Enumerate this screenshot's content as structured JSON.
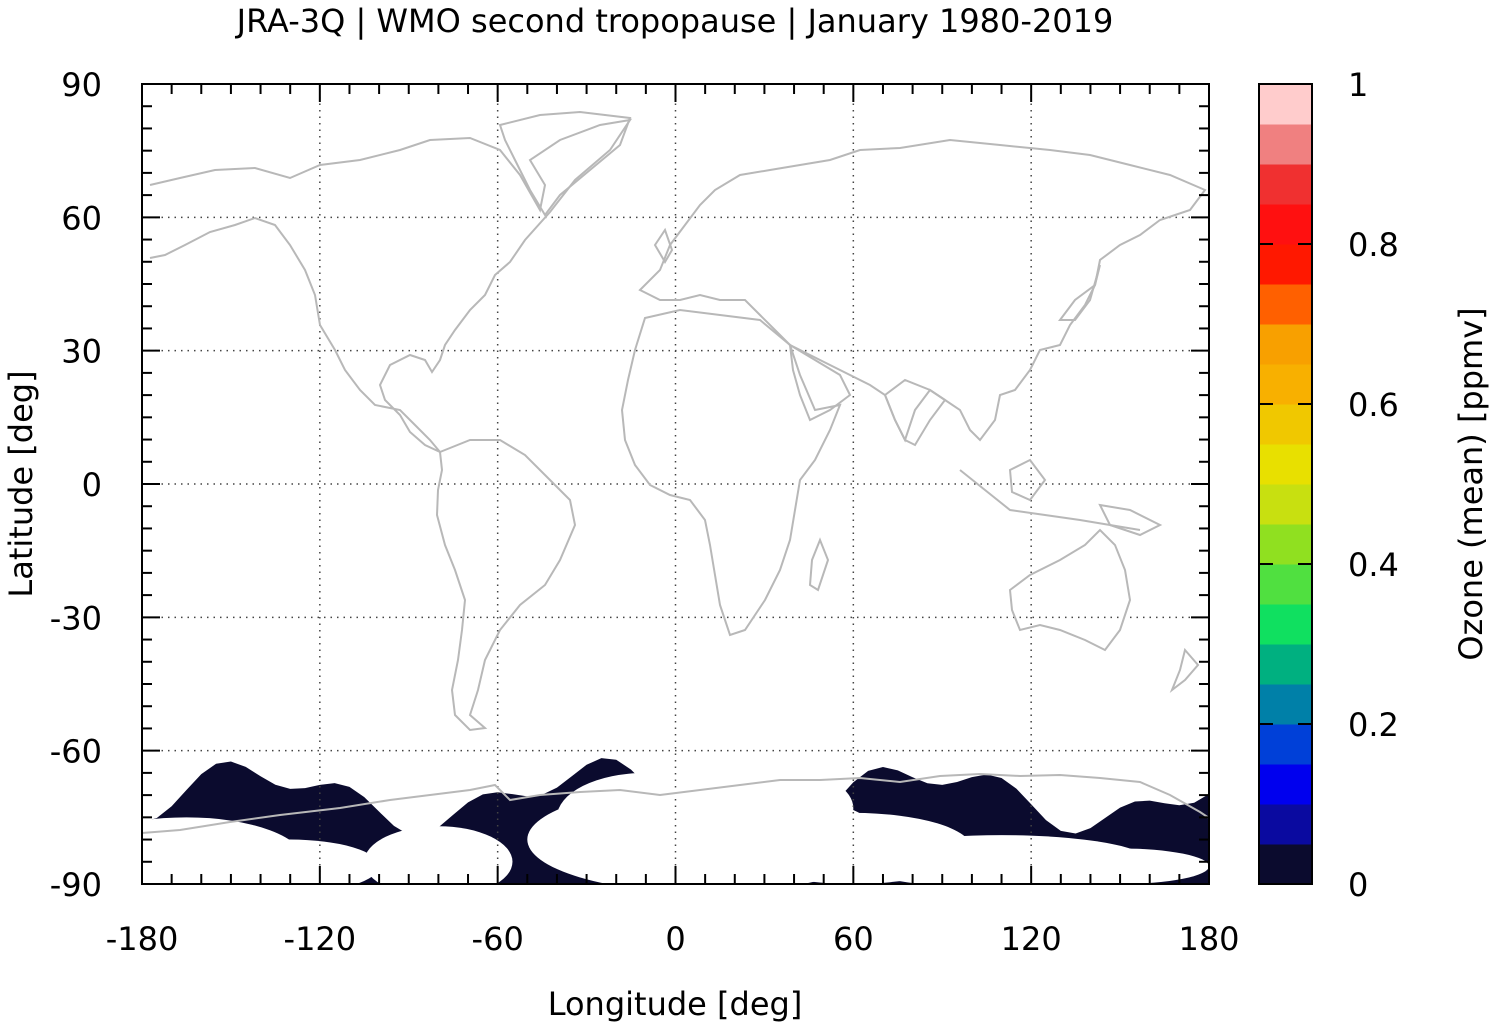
{
  "chart_data": {
    "type": "heatmap",
    "title": "JRA-3Q | WMO second tropopause | January 1980-2019",
    "xlabel": "Longitude [deg]",
    "ylabel": "Latitude [deg]",
    "xlim": [
      -180,
      180
    ],
    "ylim": [
      -90,
      90
    ],
    "x_ticks": [
      -180,
      -120,
      -60,
      0,
      60,
      120,
      180
    ],
    "x_tick_labels": [
      "-180",
      "-120",
      "-60",
      "0",
      "60",
      "120",
      "180"
    ],
    "y_ticks": [
      90,
      60,
      30,
      0,
      -30,
      -60,
      -90
    ],
    "y_tick_labels": [
      "90",
      "60",
      "30",
      "0",
      "-30",
      "-60",
      "-90"
    ],
    "grid": true,
    "coastlines": true,
    "colorbar": {
      "label": "Ozone (mean) [ppmv]",
      "min": 0,
      "max": 1,
      "ticks": [
        0,
        0.2,
        0.4,
        0.6,
        0.8,
        1
      ],
      "tick_labels": [
        "0",
        "0.2",
        "0.4",
        "0.6",
        "0.8",
        "1"
      ],
      "colors": [
        "#0b0b2e",
        "#0a0aa0",
        "#0000ee",
        "#0040d8",
        "#0080a8",
        "#00b080",
        "#10e060",
        "#50e040",
        "#90e020",
        "#c8e010",
        "#e8e000",
        "#f0c800",
        "#f8b000",
        "#f8a000",
        "#ff6000",
        "#ff1800",
        "#ff1010",
        "#f03030",
        "#f08080",
        "#ffcccc"
      ]
    },
    "data_description": "Values near 0 ppmv (dark navy) only over Antarctica / Southern Ocean south of about -65 deg; no data elsewhere",
    "data_region": {
      "lat_min": -90,
      "lat_max": -64,
      "value": 0.02
    }
  }
}
